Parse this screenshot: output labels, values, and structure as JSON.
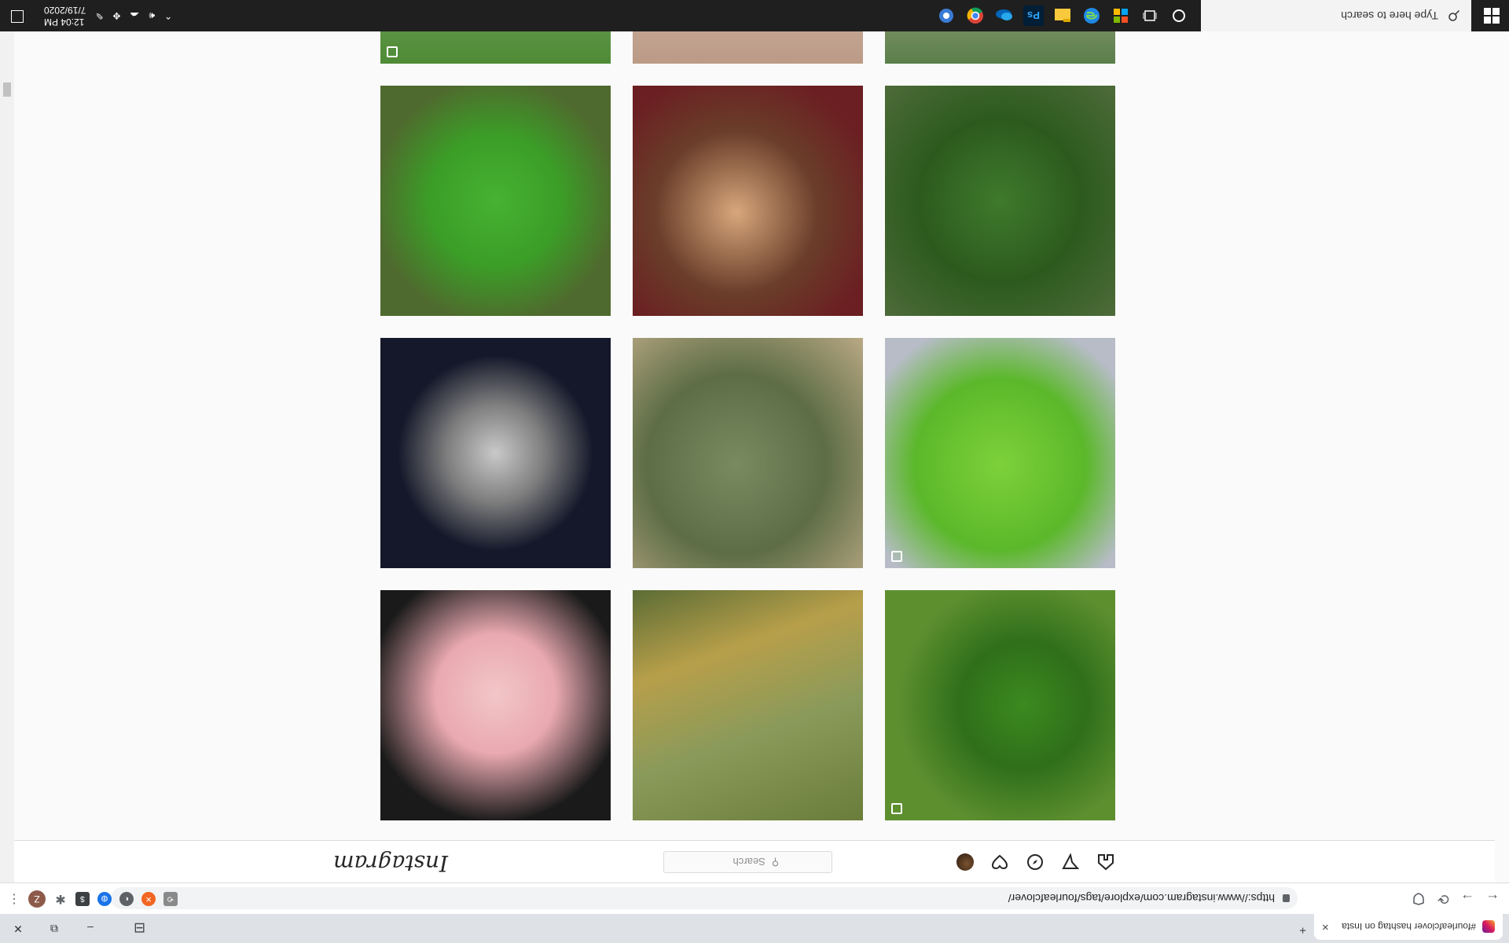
{
  "browser": {
    "tab_title": "#fourleafclover hashtag on Insta",
    "tab_close": "×",
    "new_tab": "+",
    "url": "https://www.instagram.com/explore/tags/fourleafclover/",
    "back": "←",
    "forward": "→",
    "reload": "⟳",
    "profile_initial": "Z",
    "menu": "⋮",
    "window_minimize": "–",
    "window_restore": "⧉",
    "window_close": "✕",
    "tab_layout": "⊟"
  },
  "instagram": {
    "logo": "Instagram",
    "search_placeholder": "Search",
    "search_icon_glyph": "⚲",
    "nav_icons": [
      "home-icon",
      "direct-icon",
      "explore-icon",
      "activity-icon",
      "profile-avatar"
    ]
  },
  "grid": {
    "tiles": [
      {
        "subject": "pink painted artwork",
        "multi": true
      },
      {
        "subject": "clover held in fingers on grass",
        "multi": false
      },
      {
        "subject": "white clover flowers",
        "multi": false
      },
      {
        "subject": "green crochet four-leaf coasters",
        "multi": true
      },
      {
        "subject": "four-leaf clover held in hand",
        "multi": false
      },
      {
        "subject": "diamond four-leaf clover pendant",
        "multi": false
      },
      {
        "subject": "clover patch on ground",
        "multi": false
      },
      {
        "subject": "dog lying on blanket",
        "multi": false
      },
      {
        "subject": "large four-leaf clover on green",
        "multi": false
      },
      {
        "subject": "grass and leaves",
        "multi": false
      },
      {
        "subject": "soft pink photo",
        "multi": false
      },
      {
        "subject": "hand with toes",
        "multi": true
      }
    ]
  },
  "taskbar": {
    "search_placeholder": "Type here to search",
    "apps": [
      "cortana-icon",
      "task-view-icon",
      "store-icon",
      "edge-icon",
      "file-explorer-icon",
      "photoshop-icon",
      "onedrive-icon",
      "chrome-icon",
      "settings-icon"
    ],
    "photoshop_label": "Ps",
    "time": "12:04 PM",
    "date": "7/19/2020"
  }
}
